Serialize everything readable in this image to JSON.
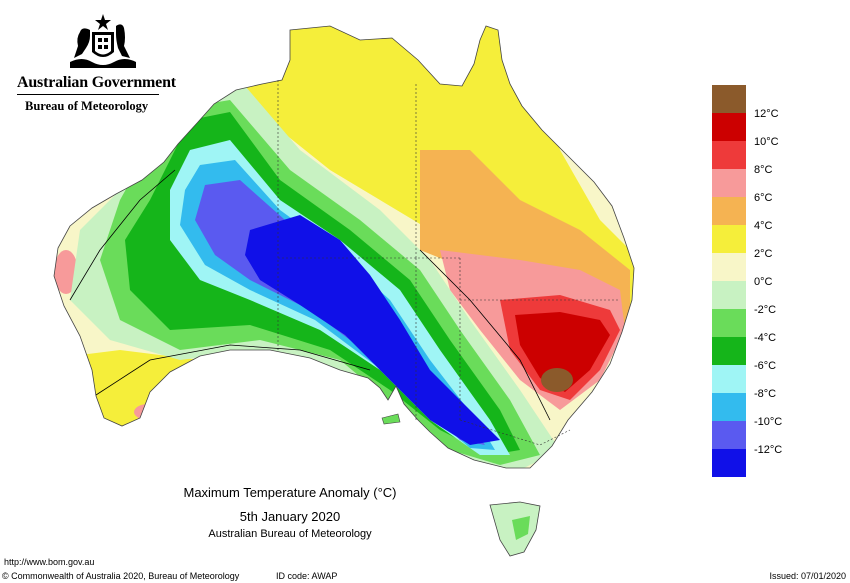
{
  "header": {
    "government": "Australian Government",
    "agency": "Bureau of Meteorology"
  },
  "map": {
    "title": "Maximum Temperature Anomaly (°C)",
    "date": "5th January 2020",
    "source": "Australian Bureau of Meteorology"
  },
  "legend": {
    "items": [
      {
        "label": "12°C",
        "color": "#8b5a2b"
      },
      {
        "label": "10°C",
        "color": "#cc0000"
      },
      {
        "label": "8°C",
        "color": "#ee3a3a"
      },
      {
        "label": "6°C",
        "color": "#f79a9a"
      },
      {
        "label": "4°C",
        "color": "#f5b352"
      },
      {
        "label": "2°C",
        "color": "#f5ee3a"
      },
      {
        "label": "0°C",
        "color": "#f8f6c8"
      },
      {
        "label": "-2°C",
        "color": "#c8f2c2"
      },
      {
        "label": "-4°C",
        "color": "#6adc5a"
      },
      {
        "label": "-6°C",
        "color": "#15b51a"
      },
      {
        "label": "-8°C",
        "color": "#9ff5f5"
      },
      {
        "label": "-10°C",
        "color": "#33bbee"
      },
      {
        "label": "-12°C",
        "color": "#5a5af0"
      },
      {
        "label": "",
        "color": "#1010e8"
      }
    ]
  },
  "footer": {
    "url": "http://www.bom.gov.au",
    "copyright": "© Commonwealth of Australia 2020, Bureau of Meteorology",
    "id_code": "ID code: AWAP",
    "issued": "Issued: 07/01/2020"
  }
}
